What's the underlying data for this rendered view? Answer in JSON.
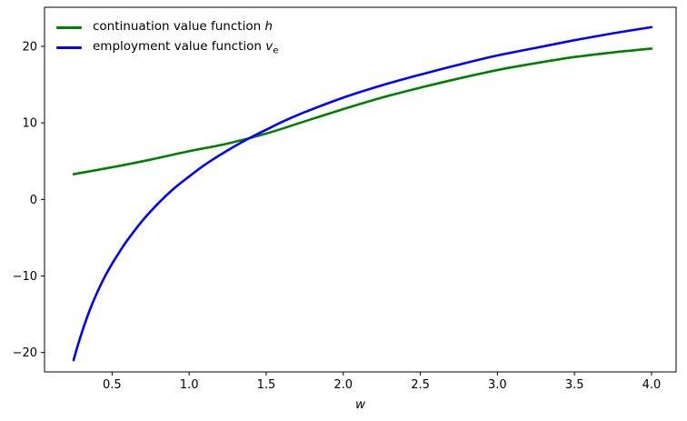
{
  "chart_data": {
    "type": "line",
    "title": "",
    "xlabel": "w",
    "ylabel": "",
    "grid": false,
    "background": "#ffffff",
    "spine_color": "#000000",
    "xlim": [
      0.0616,
      4.1594
    ],
    "ylim": [
      -22.53,
      25.1
    ],
    "xticks": {
      "values": [
        0.5,
        1.0,
        1.5,
        2.0,
        2.5,
        3.0,
        3.5,
        4.0
      ],
      "labels": [
        "0.5",
        "1.0",
        "1.5",
        "2.0",
        "2.5",
        "3.0",
        "3.5",
        "4.0"
      ]
    },
    "yticks": {
      "values": [
        -20,
        -10,
        0,
        10,
        20
      ],
      "labels": [
        "−20",
        "−10",
        "0",
        "10",
        "20"
      ]
    },
    "legend_position": "upper left",
    "series": [
      {
        "name": "continuation value function h",
        "color": "#008000",
        "linewidth": 2.6,
        "x": [
          0.25,
          0.5,
          0.75,
          1.0,
          1.25,
          1.5,
          1.75,
          2.0,
          2.25,
          2.5,
          2.75,
          3.0,
          3.25,
          3.5,
          3.75,
          4.0
        ],
        "y": [
          3.3,
          4.2,
          5.2,
          6.3,
          7.3,
          8.6,
          10.2,
          11.8,
          13.3,
          14.6,
          15.8,
          16.9,
          17.8,
          18.6,
          19.2,
          19.7
        ]
      },
      {
        "name": "employment value function v_e",
        "color": "#0000ff",
        "linewidth": 2.6,
        "x": [
          0.25,
          0.28,
          0.32,
          0.36,
          0.4,
          0.45,
          0.5,
          0.55,
          0.6,
          0.7,
          0.8,
          0.9,
          1.0,
          1.1,
          1.2,
          1.3,
          1.4,
          1.5,
          1.6,
          1.75,
          2.0,
          2.25,
          2.5,
          2.75,
          3.0,
          3.25,
          3.5,
          3.75,
          4.0
        ],
        "y": [
          -21.0,
          -18.9,
          -16.4,
          -14.2,
          -12.3,
          -10.2,
          -8.4,
          -6.8,
          -5.3,
          -2.7,
          -0.5,
          1.4,
          3.0,
          4.5,
          5.8,
          7.0,
          8.1,
          9.1,
          10.1,
          11.4,
          13.3,
          14.9,
          16.3,
          17.6,
          18.8,
          19.8,
          20.8,
          21.7,
          22.5
        ]
      }
    ]
  },
  "legend": {
    "items": [
      {
        "text": "continuation value function ",
        "math": "h",
        "sub": ""
      },
      {
        "text": "employment value function ",
        "math": "v",
        "sub": "e"
      }
    ]
  }
}
